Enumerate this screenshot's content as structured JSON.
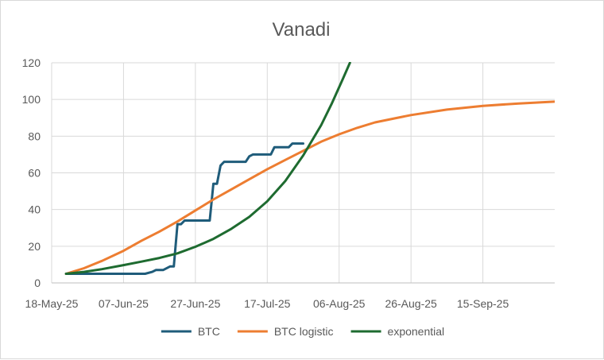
{
  "chart_data": {
    "type": "line",
    "title": "Vanadi",
    "xlabel": "",
    "ylabel": "",
    "x_axis": {
      "type": "date",
      "min": "2025-05-18",
      "max": "2025-10-05",
      "ticks": [
        "18-May-25",
        "07-Jun-25",
        "27-Jun-25",
        "17-Jul-25",
        "06-Aug-25",
        "26-Aug-25",
        "15-Sep-25"
      ],
      "tick_dates": [
        "2025-05-18",
        "2025-06-07",
        "2025-06-27",
        "2025-07-17",
        "2025-08-06",
        "2025-08-26",
        "2025-09-15"
      ]
    },
    "y_axis": {
      "min": 0,
      "max": 120,
      "ticks": [
        "0",
        "20",
        "40",
        "60",
        "80",
        "100",
        "120"
      ]
    },
    "grid": true,
    "legend_position": "bottom",
    "series": [
      {
        "name": "BTC",
        "color": "#1f5c7a",
        "points": [
          [
            "2025-05-22",
            5
          ],
          [
            "2025-06-13",
            5
          ],
          [
            "2025-06-15",
            6
          ],
          [
            "2025-06-16",
            7
          ],
          [
            "2025-06-18",
            7
          ],
          [
            "2025-06-20",
            9
          ],
          [
            "2025-06-21",
            9
          ],
          [
            "2025-06-22",
            32
          ],
          [
            "2025-06-23",
            32
          ],
          [
            "2025-06-24",
            34
          ],
          [
            "2025-06-29",
            34
          ],
          [
            "2025-07-01",
            34
          ],
          [
            "2025-07-02",
            54
          ],
          [
            "2025-07-03",
            54
          ],
          [
            "2025-07-04",
            64
          ],
          [
            "2025-07-05",
            66
          ],
          [
            "2025-07-11",
            66
          ],
          [
            "2025-07-12",
            69
          ],
          [
            "2025-07-13",
            70
          ],
          [
            "2025-07-17",
            70
          ],
          [
            "2025-07-18",
            70
          ],
          [
            "2025-07-19",
            74
          ],
          [
            "2025-07-23",
            74
          ],
          [
            "2025-07-24",
            76
          ],
          [
            "2025-07-27",
            76
          ]
        ]
      },
      {
        "name": "BTC logistic",
        "color": "#ed7d31",
        "points": [
          [
            "2025-05-22",
            5
          ],
          [
            "2025-05-27",
            8
          ],
          [
            "2025-06-01",
            12
          ],
          [
            "2025-06-07",
            17.5
          ],
          [
            "2025-06-12",
            23
          ],
          [
            "2025-06-17",
            28
          ],
          [
            "2025-06-22",
            33.5
          ],
          [
            "2025-06-27",
            39.5
          ],
          [
            "2025-07-02",
            45.5
          ],
          [
            "2025-07-07",
            51
          ],
          [
            "2025-07-12",
            56.5
          ],
          [
            "2025-07-17",
            62
          ],
          [
            "2025-07-22",
            67
          ],
          [
            "2025-07-27",
            72
          ],
          [
            "2025-08-01",
            77
          ],
          [
            "2025-08-06",
            81
          ],
          [
            "2025-08-11",
            84.5
          ],
          [
            "2025-08-16",
            87.5
          ],
          [
            "2025-08-21",
            89.5
          ],
          [
            "2025-08-26",
            91.5
          ],
          [
            "2025-09-05",
            94.5
          ],
          [
            "2025-09-15",
            96.5
          ],
          [
            "2025-09-25",
            97.8
          ],
          [
            "2025-10-05",
            98.8
          ]
        ]
      },
      {
        "name": "exponential",
        "color": "#1e6b30",
        "points": [
          [
            "2025-05-22",
            5
          ],
          [
            "2025-05-27",
            6
          ],
          [
            "2025-06-01",
            7.5
          ],
          [
            "2025-06-07",
            9.7
          ],
          [
            "2025-06-12",
            11.6
          ],
          [
            "2025-06-17",
            13.6
          ],
          [
            "2025-06-22",
            16.1
          ],
          [
            "2025-06-27",
            19.7
          ],
          [
            "2025-07-02",
            24
          ],
          [
            "2025-07-07",
            29.5
          ],
          [
            "2025-07-12",
            36
          ],
          [
            "2025-07-17",
            44.5
          ],
          [
            "2025-07-22",
            55.5
          ],
          [
            "2025-07-27",
            69.5
          ],
          [
            "2025-08-01",
            86
          ],
          [
            "2025-08-04",
            98
          ],
          [
            "2025-08-07",
            111
          ],
          [
            "2025-08-09",
            120
          ]
        ]
      }
    ]
  }
}
